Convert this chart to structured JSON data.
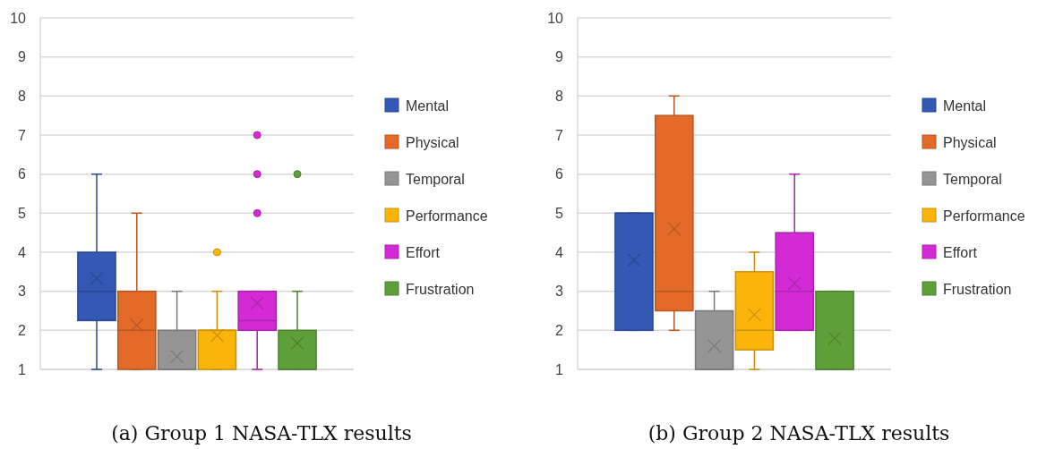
{
  "chart_data": [
    {
      "type": "box",
      "title": "(a) Group 1 NASA-TLX results",
      "categories": [
        null
      ],
      "ylim": [
        1,
        10
      ],
      "yticks": [
        1,
        2,
        3,
        4,
        5,
        6,
        7,
        8,
        9,
        10
      ],
      "grid": "y",
      "legend": "right",
      "series": [
        {
          "name": "Mental",
          "color": "#3459b5",
          "boxes": [
            {
              "low": 1,
              "q1": 2.25,
              "median": 3,
              "q3": 4,
              "high": 6,
              "mean": 3.33
            }
          ]
        },
        {
          "name": "Physical",
          "color": "#e36a28",
          "boxes": [
            {
              "low": 1,
              "q1": 1,
              "median": 2,
              "q3": 3,
              "high": 5,
              "mean": 2.13
            }
          ]
        },
        {
          "name": "Temporal",
          "color": "#959595",
          "boxes": [
            {
              "low": 1,
              "q1": 1,
              "median": 1,
              "q3": 2,
              "high": 3,
              "mean": 1.33
            }
          ]
        },
        {
          "name": "Performance",
          "color": "#fbb40a",
          "boxes": [
            {
              "low": 1,
              "q1": 1,
              "median": 2,
              "q3": 2,
              "high": 3,
              "mean": 1.87,
              "outliers": [
                4
              ]
            }
          ]
        },
        {
          "name": "Effort",
          "color": "#d42ad6",
          "boxes": [
            {
              "low": 1,
              "q1": 2,
              "median": 2.25,
              "q3": 3,
              "high": 3,
              "mean": 2.7,
              "outliers": [
                5,
                6,
                7
              ]
            }
          ]
        },
        {
          "name": "Frustration",
          "color": "#5f9f3a",
          "boxes": [
            {
              "low": 1,
              "q1": 1,
              "median": 1,
              "q3": 2,
              "high": 3,
              "mean": 1.67,
              "outliers": [
                6
              ]
            }
          ]
        }
      ]
    },
    {
      "type": "box",
      "title": "(b) Group 2 NASA-TLX results",
      "categories": [
        null
      ],
      "ylim": [
        1,
        10
      ],
      "yticks": [
        1,
        2,
        3,
        4,
        5,
        6,
        7,
        8,
        9,
        10
      ],
      "grid": "y",
      "legend": "right",
      "series": [
        {
          "name": "Mental",
          "color": "#3459b5",
          "boxes": [
            {
              "low": 2,
              "q1": 2,
              "median": 5,
              "q3": 5,
              "high": 5,
              "mean": 3.8
            }
          ]
        },
        {
          "name": "Physical",
          "color": "#e36a28",
          "boxes": [
            {
              "low": 2,
              "q1": 2.5,
              "median": 3,
              "q3": 7.5,
              "high": 8,
              "mean": 4.6
            }
          ]
        },
        {
          "name": "Temporal",
          "color": "#959595",
          "boxes": [
            {
              "low": 1,
              "q1": 1,
              "median": 1,
              "q3": 2.5,
              "high": 3,
              "mean": 1.6
            }
          ]
        },
        {
          "name": "Performance",
          "color": "#fbb40a",
          "boxes": [
            {
              "low": 1,
              "q1": 1.5,
              "median": 2,
              "q3": 3.5,
              "high": 4,
              "mean": 2.4
            }
          ]
        },
        {
          "name": "Effort",
          "color": "#d42ad6",
          "boxes": [
            {
              "low": 2,
              "q1": 2,
              "median": 3,
              "q3": 4.5,
              "high": 6,
              "mean": 3.2
            }
          ]
        },
        {
          "name": "Frustration",
          "color": "#5f9f3a",
          "boxes": [
            {
              "low": 1,
              "q1": 1,
              "median": 1,
              "q3": 3,
              "high": 3,
              "mean": 1.8
            }
          ]
        }
      ]
    }
  ]
}
